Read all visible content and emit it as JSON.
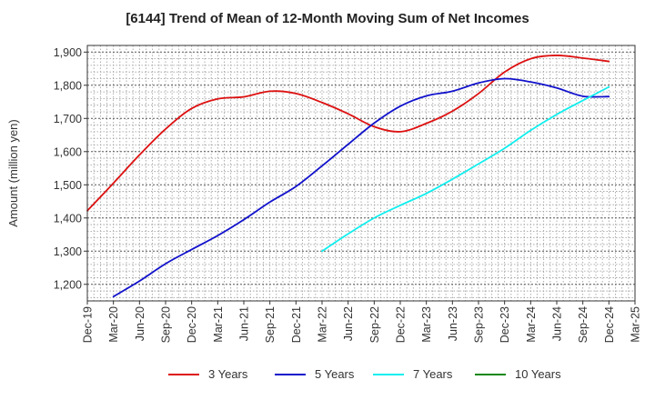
{
  "chart_data": {
    "type": "line",
    "title": "[6144]  Trend of Mean of 12-Month Moving Sum of Net Incomes",
    "ylabel": "Amount (million yen)",
    "xlabel": "",
    "ylim": [
      1150,
      1920
    ],
    "yticks": [
      1200,
      1300,
      1400,
      1500,
      1600,
      1700,
      1800,
      1900
    ],
    "ytick_labels": [
      "1,200",
      "1,300",
      "1,400",
      "1,500",
      "1,600",
      "1,700",
      "1,800",
      "1,900"
    ],
    "xtick_labels": [
      "Dec-19",
      "Mar-20",
      "Jun-20",
      "Sep-20",
      "Dec-20",
      "Mar-21",
      "Jun-21",
      "Sep-21",
      "Dec-21",
      "Mar-22",
      "Jun-22",
      "Sep-22",
      "Dec-22",
      "Mar-23",
      "Jun-23",
      "Sep-23",
      "Dec-23",
      "Mar-24",
      "Jun-24",
      "Sep-24",
      "Dec-24",
      "Mar-25"
    ],
    "x_range": [
      "Dec-19",
      "Mar-25"
    ],
    "grid": true,
    "legend_position": "bottom",
    "series": [
      {
        "name": "3 Years",
        "color": "#dd1111",
        "x": [
          "Dec-19",
          "Mar-20",
          "Jun-20",
          "Sep-20",
          "Dec-20",
          "Mar-21",
          "Jun-21",
          "Sep-21",
          "Dec-21",
          "Mar-22",
          "Jun-22",
          "Sep-22",
          "Dec-22",
          "Mar-23",
          "Jun-23",
          "Sep-23",
          "Dec-23",
          "Mar-24",
          "Jun-24",
          "Sep-24",
          "Dec-24"
        ],
        "values": [
          1422,
          1505,
          1590,
          1668,
          1730,
          1759,
          1765,
          1782,
          1775,
          1748,
          1714,
          1675,
          1660,
          1685,
          1722,
          1775,
          1840,
          1880,
          1890,
          1882,
          1872
        ]
      },
      {
        "name": "5 Years",
        "color": "#1111cc",
        "x": [
          "Mar-20",
          "Jun-20",
          "Sep-20",
          "Dec-20",
          "Mar-21",
          "Jun-21",
          "Sep-21",
          "Dec-21",
          "Mar-22",
          "Jun-22",
          "Sep-22",
          "Dec-22",
          "Mar-23",
          "Jun-23",
          "Sep-23",
          "Dec-23",
          "Mar-24",
          "Jun-24",
          "Sep-24",
          "Dec-24"
        ],
        "values": [
          1163,
          1210,
          1262,
          1305,
          1347,
          1395,
          1448,
          1495,
          1557,
          1622,
          1686,
          1737,
          1768,
          1782,
          1807,
          1820,
          1810,
          1792,
          1767,
          1766
        ]
      },
      {
        "name": "7 Years",
        "color": "#11eeee",
        "x": [
          "Mar-22",
          "Jun-22",
          "Sep-22",
          "Dec-22",
          "Mar-23",
          "Jun-23",
          "Sep-23",
          "Dec-23",
          "Mar-24",
          "Jun-24",
          "Sep-24",
          "Dec-24"
        ],
        "values": [
          1300,
          1352,
          1400,
          1438,
          1474,
          1517,
          1563,
          1610,
          1664,
          1712,
          1754,
          1795
        ]
      },
      {
        "name": "10 Years",
        "color": "#118811",
        "x": [],
        "values": []
      }
    ]
  }
}
